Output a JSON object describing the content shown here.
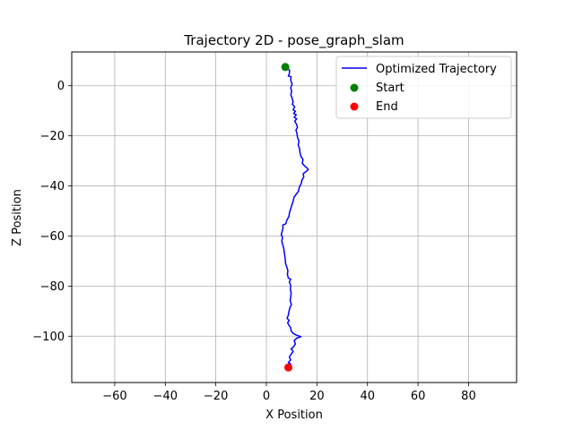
{
  "chart_data": {
    "type": "line",
    "title": "Trajectory 2D - pose_graph_slam",
    "xlabel": "X Position",
    "ylabel": "Z Position",
    "xlim": [
      -77,
      99
    ],
    "ylim": [
      -118.5,
      13.5
    ],
    "xticks": [
      -60,
      -40,
      -20,
      0,
      20,
      40,
      60,
      80
    ],
    "yticks": [
      0,
      -20,
      -40,
      -60,
      -80,
      -100
    ],
    "xtick_labels": [
      "−60",
      "−40",
      "−20",
      "0",
      "20",
      "40",
      "60",
      "80"
    ],
    "ytick_labels": [
      "0",
      "−20",
      "−40",
      "−60",
      "−80",
      "−100"
    ],
    "grid": true,
    "legend_placement": "top-right",
    "colors": {
      "trajectory": "#0000ff",
      "start": "#008000",
      "end": "#ff0000"
    },
    "series": [
      {
        "name": "Optimized Trajectory",
        "points": [
          [
            7.7,
            7.5
          ],
          [
            8.5,
            6.6
          ],
          [
            9.2,
            6.2
          ],
          [
            9.1,
            4.8
          ],
          [
            8.7,
            3.9
          ],
          [
            9.8,
            3.6
          ],
          [
            9.6,
            2.3
          ],
          [
            10.2,
            0.6
          ],
          [
            9.6,
            -0.8
          ],
          [
            10.0,
            -2.1
          ],
          [
            9.7,
            -3.6
          ],
          [
            10.2,
            -5.0
          ],
          [
            10.6,
            -6.4
          ],
          [
            10.3,
            -7.4
          ],
          [
            11.2,
            -8.4
          ],
          [
            10.6,
            -9.6
          ],
          [
            11.5,
            -10.2
          ],
          [
            10.8,
            -11.0
          ],
          [
            11.8,
            -11.6
          ],
          [
            11.0,
            -12.6
          ],
          [
            12.0,
            -13.2
          ],
          [
            11.2,
            -14.2
          ],
          [
            11.9,
            -15.3
          ],
          [
            12.3,
            -16.6
          ],
          [
            11.7,
            -17.7
          ],
          [
            12.1,
            -19.0
          ],
          [
            12.3,
            -20.6
          ],
          [
            12.9,
            -22.1
          ],
          [
            12.6,
            -23.6
          ],
          [
            13.1,
            -25.0
          ],
          [
            13.3,
            -26.6
          ],
          [
            13.6,
            -28.0
          ],
          [
            14.5,
            -29.5
          ],
          [
            14.2,
            -30.9
          ],
          [
            15.2,
            -32.1
          ],
          [
            16.0,
            -32.7
          ],
          [
            16.6,
            -33.4
          ],
          [
            16.0,
            -34.0
          ],
          [
            14.6,
            -35.1
          ],
          [
            14.8,
            -36.4
          ],
          [
            14.1,
            -37.6
          ],
          [
            13.8,
            -39.0
          ],
          [
            13.0,
            -40.6
          ],
          [
            12.7,
            -42.1
          ],
          [
            11.6,
            -43.6
          ],
          [
            10.9,
            -44.6
          ],
          [
            10.6,
            -46.1
          ],
          [
            10.1,
            -47.5
          ],
          [
            9.7,
            -49.0
          ],
          [
            9.2,
            -50.5
          ],
          [
            8.9,
            -52.2
          ],
          [
            8.1,
            -53.7
          ],
          [
            7.7,
            -55.1
          ],
          [
            6.5,
            -55.6
          ],
          [
            6.6,
            -56.6
          ],
          [
            6.3,
            -57.9
          ],
          [
            5.9,
            -59.4
          ],
          [
            6.4,
            -60.7
          ],
          [
            6.1,
            -62.0
          ],
          [
            6.5,
            -63.6
          ],
          [
            6.9,
            -65.0
          ],
          [
            7.1,
            -66.6
          ],
          [
            7.3,
            -68.0
          ],
          [
            7.5,
            -69.5
          ],
          [
            7.6,
            -71.0
          ],
          [
            8.1,
            -72.4
          ],
          [
            8.5,
            -73.9
          ],
          [
            8.3,
            -75.3
          ],
          [
            8.7,
            -76.8
          ],
          [
            9.6,
            -77.3
          ],
          [
            9.1,
            -78.3
          ],
          [
            9.6,
            -79.8
          ],
          [
            9.5,
            -81.3
          ],
          [
            9.8,
            -82.9
          ],
          [
            9.6,
            -84.4
          ],
          [
            9.4,
            -85.8
          ],
          [
            9.9,
            -87.3
          ],
          [
            9.3,
            -88.7
          ],
          [
            8.9,
            -90.2
          ],
          [
            8.7,
            -91.6
          ],
          [
            8.2,
            -92.8
          ],
          [
            9.0,
            -93.7
          ],
          [
            8.4,
            -94.6
          ],
          [
            8.9,
            -95.6
          ],
          [
            9.6,
            -96.6
          ],
          [
            9.8,
            -97.9
          ],
          [
            10.6,
            -98.9
          ],
          [
            11.7,
            -99.5
          ],
          [
            13.7,
            -100.2
          ],
          [
            12.0,
            -100.8
          ],
          [
            11.0,
            -101.8
          ],
          [
            11.5,
            -103.1
          ],
          [
            10.7,
            -104.3
          ],
          [
            9.8,
            -105.1
          ],
          [
            10.6,
            -106.0
          ],
          [
            9.9,
            -107.1
          ],
          [
            9.1,
            -108.3
          ],
          [
            9.6,
            -109.5
          ],
          [
            8.7,
            -110.5
          ],
          [
            9.6,
            -111.1
          ],
          [
            9.1,
            -112.0
          ],
          [
            8.9,
            -112.4
          ]
        ]
      }
    ],
    "markers": [
      {
        "name": "Start",
        "x": 7.5,
        "y": 7.5
      },
      {
        "name": "End",
        "x": 8.7,
        "y": -112.5
      }
    ]
  }
}
